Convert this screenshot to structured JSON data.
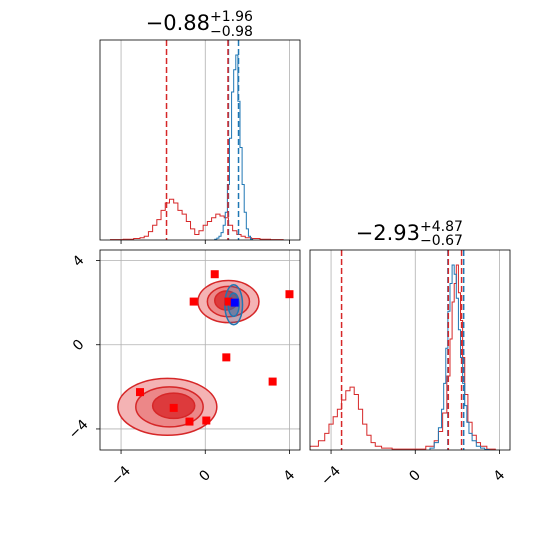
{
  "chart_data": {
    "type": "corner",
    "colors": {
      "red": "#d62728",
      "blue": "#1f77b4",
      "marker_red": "#ff0000",
      "marker_blue": "#0000ff",
      "grid": "#b0b0b0"
    },
    "grid": true,
    "axis_range": [
      -5,
      4.5
    ],
    "ticks": [
      -4,
      0,
      4
    ],
    "tick_labels": [
      "−4",
      "0",
      "4"
    ],
    "parameters": [
      {
        "title_value": "−0.88",
        "title_plus": "+1.96",
        "title_minus": "−0.98"
      },
      {
        "title_value": "−2.93",
        "title_plus": "+4.87",
        "title_minus": "−0.67"
      }
    ],
    "hist_param1": {
      "red_lines": [
        -1.84,
        1.08
      ],
      "blue_lines": [
        1.1,
        1.58
      ],
      "red_hist": {
        "x": [
          -4.2,
          -3.6,
          -3.2,
          -3.0,
          -2.8,
          -2.6,
          -2.4,
          -2.2,
          -2.0,
          -1.8,
          -1.6,
          -1.4,
          -1.2,
          -1.0,
          -0.8,
          -0.6,
          -0.4,
          -0.2,
          0.0,
          0.2,
          0.4,
          0.6,
          0.8,
          1.0,
          1.2,
          1.4,
          1.6,
          1.8,
          2.0,
          2.4,
          2.8,
          3.4
        ],
        "y": [
          0.002,
          0.004,
          0.008,
          0.012,
          0.02,
          0.045,
          0.08,
          0.11,
          0.16,
          0.2,
          0.22,
          0.2,
          0.16,
          0.14,
          0.1,
          0.06,
          0.03,
          0.05,
          0.08,
          0.1,
          0.12,
          0.14,
          0.13,
          0.12,
          0.08,
          0.05,
          0.03,
          0.02,
          0.012,
          0.008,
          0.004,
          0.002
        ]
      },
      "blue_hist": {
        "x": [
          0.5,
          0.6,
          0.7,
          0.8,
          0.9,
          1.0,
          1.1,
          1.2,
          1.3,
          1.4,
          1.5,
          1.6,
          1.7,
          1.8,
          1.9,
          2.0,
          2.1,
          2.2
        ],
        "y": [
          0.004,
          0.01,
          0.02,
          0.04,
          0.08,
          0.15,
          0.3,
          0.55,
          0.8,
          0.92,
          1.0,
          0.75,
          0.5,
          0.3,
          0.15,
          0.06,
          0.02,
          0.005
        ]
      }
    },
    "hist_param2": {
      "red_lines": [
        -3.5,
        1.57,
        2.2
      ],
      "blue_lines": [
        1.55,
        2.3
      ],
      "red_hist": {
        "x": [
          -4.8,
          -4.4,
          -4.2,
          -4.0,
          -3.8,
          -3.6,
          -3.4,
          -3.2,
          -3.0,
          -2.8,
          -2.6,
          -2.4,
          -2.2,
          -2.0,
          -1.8,
          -1.4,
          -0.8,
          0.2,
          0.8,
          1.0,
          1.2,
          1.4,
          1.6,
          1.7,
          1.8,
          1.9,
          2.0,
          2.1,
          2.2,
          2.3,
          2.4,
          2.6,
          2.8,
          3.0,
          3.2,
          3.6
        ],
        "y": [
          0.02,
          0.05,
          0.09,
          0.14,
          0.18,
          0.22,
          0.27,
          0.32,
          0.34,
          0.3,
          0.22,
          0.14,
          0.08,
          0.04,
          0.02,
          0.01,
          0.005,
          0.005,
          0.02,
          0.05,
          0.1,
          0.2,
          0.4,
          0.6,
          0.8,
          0.9,
          1.0,
          0.85,
          0.7,
          0.5,
          0.3,
          0.15,
          0.08,
          0.04,
          0.02,
          0.005
        ]
      },
      "blue_hist": {
        "x": [
          0.8,
          1.0,
          1.2,
          1.3,
          1.4,
          1.5,
          1.6,
          1.7,
          1.8,
          1.9,
          2.0,
          2.1,
          2.2,
          2.3,
          2.4,
          2.5,
          2.6,
          2.8,
          3.0,
          3.2,
          3.4
        ],
        "y": [
          0.01,
          0.04,
          0.12,
          0.22,
          0.36,
          0.55,
          0.75,
          0.9,
          1.0,
          0.95,
          0.82,
          0.65,
          0.5,
          0.36,
          0.24,
          0.15,
          0.09,
          0.05,
          0.02,
          0.01,
          0.003
        ]
      }
    },
    "scatter_2d": {
      "red_contours": [
        {
          "cx": 1.1,
          "cy": 2.05,
          "rx": 1.45,
          "ry": 1.0
        },
        {
          "cx": 1.1,
          "cy": 2.05,
          "rx": 1.0,
          "ry": 0.72
        },
        {
          "cx": 1.0,
          "cy": 2.1,
          "rx": 0.55,
          "ry": 0.45
        },
        {
          "cx": -1.8,
          "cy": -2.95,
          "rx": 2.35,
          "ry": 1.35
        },
        {
          "cx": -1.7,
          "cy": -2.95,
          "rx": 1.6,
          "ry": 0.95
        },
        {
          "cx": -1.5,
          "cy": -2.9,
          "rx": 1.0,
          "ry": 0.6
        }
      ],
      "blue_contours": [
        {
          "cx": 1.35,
          "cy": 1.9,
          "rx": 0.42,
          "ry": 0.95
        },
        {
          "cx": 1.35,
          "cy": 1.9,
          "rx": 0.26,
          "ry": 0.55
        }
      ],
      "red_markers": [
        {
          "x": 0.45,
          "y": 3.35
        },
        {
          "x": -0.55,
          "y": 2.05
        },
        {
          "x": 1.1,
          "y": 2.05
        },
        {
          "x": 4.0,
          "y": 2.4
        },
        {
          "x": 1.0,
          "y": -0.6
        },
        {
          "x": 3.2,
          "y": -1.75
        },
        {
          "x": -3.1,
          "y": -2.25
        },
        {
          "x": -1.5,
          "y": -3.0
        },
        {
          "x": -0.75,
          "y": -3.65
        },
        {
          "x": 0.05,
          "y": -3.6
        }
      ],
      "blue_markers": [
        {
          "x": 1.4,
          "y": 2.0
        }
      ]
    }
  }
}
